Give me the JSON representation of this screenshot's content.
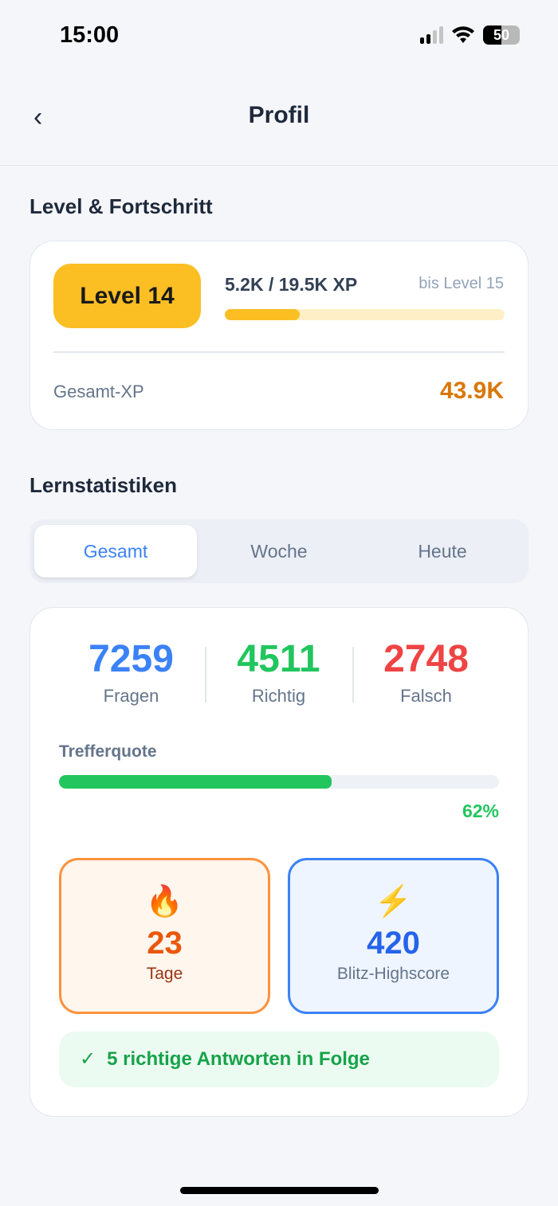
{
  "status": {
    "time": "15:00",
    "battery": "50"
  },
  "header": {
    "title": "Profil",
    "back": "‹"
  },
  "level": {
    "section": "Level & Fortschritt",
    "badge": "Level 14",
    "xp": "5.2K / 19.5K XP",
    "next": "bis Level 15",
    "progress": 0.267,
    "total_label": "Gesamt-XP",
    "total_value": "43.9K"
  },
  "stats": {
    "section": "Lernstatistiken",
    "tabs": [
      {
        "label": "Gesamt",
        "active": true
      },
      {
        "label": "Woche"
      },
      {
        "label": "Heute"
      }
    ],
    "counts": [
      {
        "value": "7259",
        "label": "Fragen",
        "color": "#3b82f6"
      },
      {
        "value": "4511",
        "label": "Richtig",
        "color": "#22c55e"
      },
      {
        "value": "2748",
        "label": "Falsch",
        "color": "#ef4444"
      }
    ],
    "hit_rate_label": "Trefferquote",
    "hit_rate": 62,
    "hit_rate_text": "62%",
    "streak_days": {
      "icon": "🔥",
      "value": "23",
      "label": "Tage"
    },
    "blitz": {
      "icon": "⚡",
      "value": "420",
      "label": "Blitz-Highscore"
    },
    "streak_msg": {
      "check": "✓",
      "text": "5 richtige Antworten in Folge"
    }
  }
}
